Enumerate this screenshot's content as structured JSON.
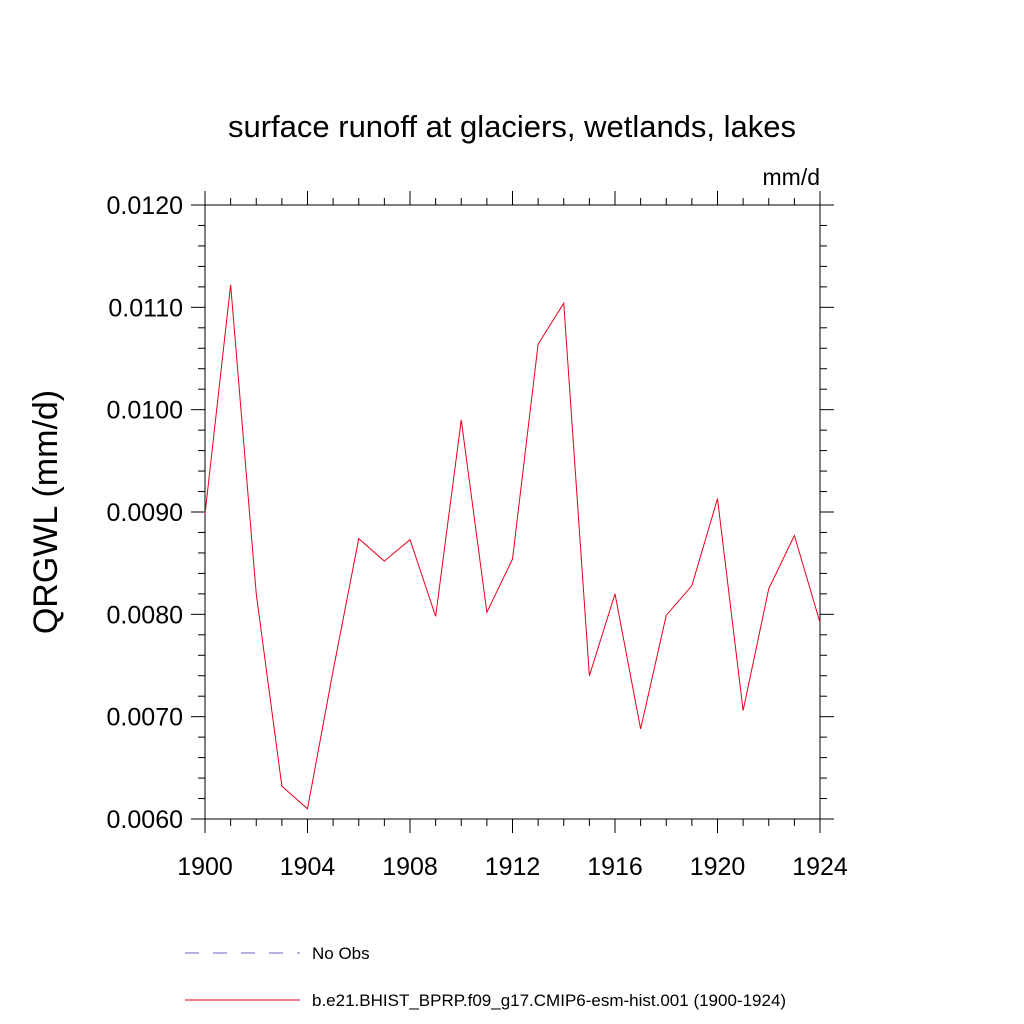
{
  "chart_data": {
    "type": "line",
    "title": "surface runoff at glaciers, wetlands, lakes",
    "units": "mm/d",
    "ylabel": "QRGWL  (mm/d)",
    "xlabel": "",
    "xlim": [
      1900,
      1924
    ],
    "ylim": [
      0.006,
      0.012
    ],
    "xticks": [
      1900,
      1904,
      1908,
      1912,
      1916,
      1920,
      1924
    ],
    "xtick_labels": [
      "1900",
      "1904",
      "1908",
      "1912",
      "1916",
      "1920",
      "1924"
    ],
    "yticks": [
      0.006,
      0.007,
      0.008,
      0.009,
      0.01,
      0.011,
      0.012
    ],
    "ytick_labels": [
      "0.0060",
      "0.0070",
      "0.0080",
      "0.0090",
      "0.0100",
      "0.0110",
      "0.0120"
    ],
    "grid": false,
    "legend_position": "bottom",
    "legend": [
      {
        "label": "No Obs",
        "color": "#6b62c9",
        "style": "dashed"
      },
      {
        "label": "b.e21.BHIST_BPRP.f09_g17.CMIP6-esm-hist.001 (1900-1924)",
        "color": "#e8001c",
        "style": "solid"
      }
    ],
    "series": [
      {
        "name": "b.e21.BHIST_BPRP.f09_g17.CMIP6-esm-hist.001 (1900-1924)",
        "color": "#e8001c",
        "x": [
          1900,
          1901,
          1902,
          1903,
          1904,
          1905,
          1906,
          1907,
          1908,
          1909,
          1910,
          1911,
          1912,
          1913,
          1914,
          1915,
          1916,
          1917,
          1918,
          1919,
          1920,
          1921,
          1922,
          1923,
          1924
        ],
        "y": [
          0.00898,
          0.01122,
          0.0082,
          0.00632,
          0.0061,
          0.00745,
          0.00874,
          0.00852,
          0.00873,
          0.00798,
          0.0099,
          0.00802,
          0.00854,
          0.01064,
          0.01104,
          0.0074,
          0.0082,
          0.00688,
          0.00799,
          0.00828,
          0.00913,
          0.00706,
          0.00825,
          0.00877,
          0.00792
        ]
      }
    ]
  }
}
